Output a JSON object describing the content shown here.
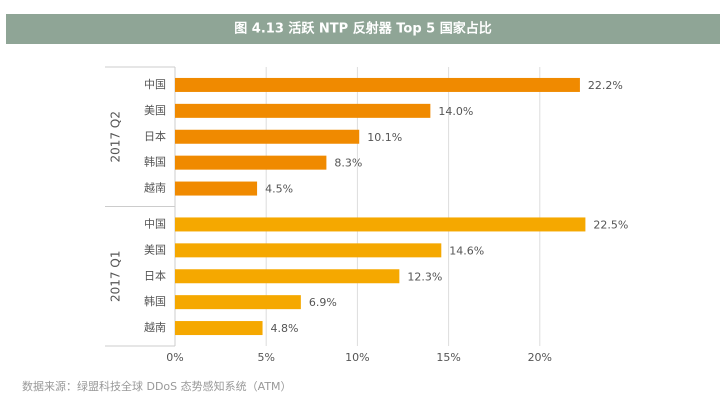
{
  "chart_data": {
    "type": "bar",
    "title": "图 4.13 活跃 NTP 反射器 Top 5 国家占比",
    "source": "数据来源：绿盟科技全球 DDoS 态势感知系统（ATM）",
    "groups": [
      {
        "name": "2017 Q2",
        "color": "#f08a00",
        "categories": [
          "中国",
          "美国",
          "日本",
          "韩国",
          "越南"
        ],
        "values": [
          22.2,
          14.0,
          10.1,
          8.3,
          4.5
        ],
        "value_labels": [
          "22.2%",
          "14.0%",
          "10.1%",
          "8.3%",
          "4.5%"
        ]
      },
      {
        "name": "2017 Q1",
        "color": "#f5a800",
        "categories": [
          "中国",
          "美国",
          "日本",
          "韩国",
          "越南"
        ],
        "values": [
          22.5,
          14.6,
          12.3,
          6.9,
          4.8
        ],
        "value_labels": [
          "22.5%",
          "14.6%",
          "12.3%",
          "6.9%",
          "4.8%"
        ]
      }
    ],
    "xlim": [
      0,
      25
    ],
    "xticks": [
      {
        "value": 0,
        "label": "0%"
      },
      {
        "value": 5,
        "label": "5%"
      },
      {
        "value": 10,
        "label": "10%"
      },
      {
        "value": 15,
        "label": "15%"
      },
      {
        "value": 20,
        "label": "20%"
      }
    ],
    "grid": true
  }
}
